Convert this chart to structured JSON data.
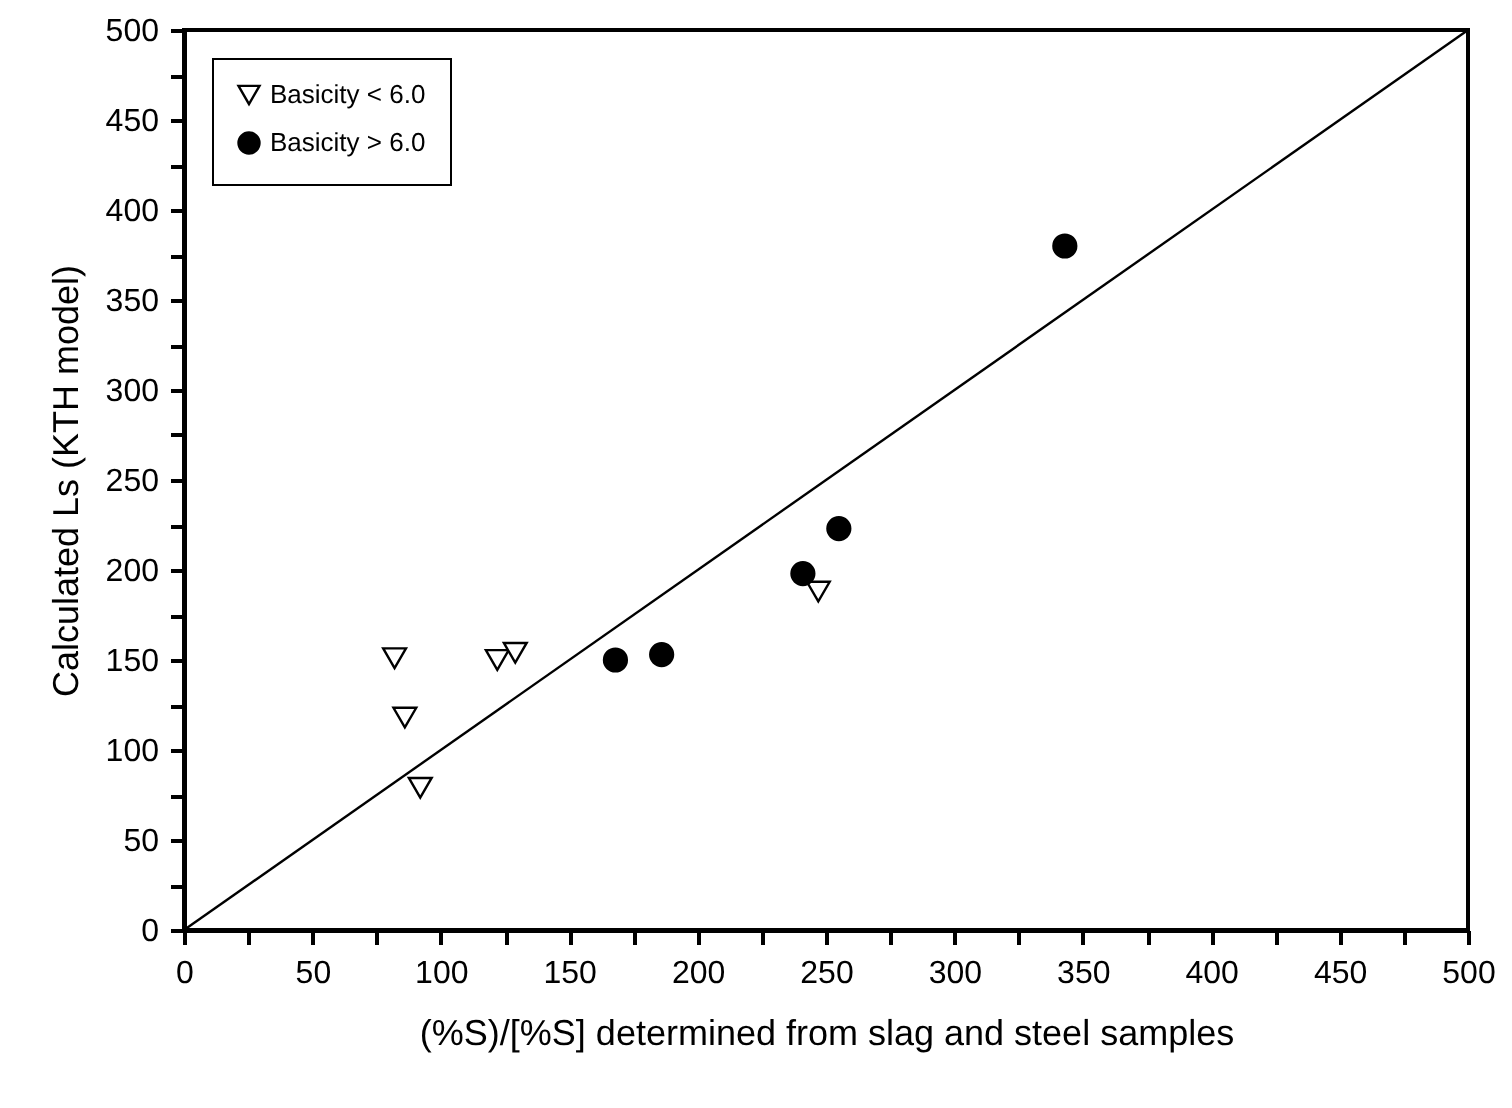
{
  "chart_data": {
    "type": "scatter",
    "xlabel": "(%S)/[%S] determined from slag and steel samples",
    "ylabel": "Calculated Ls (KTH model)",
    "xlim": [
      0,
      500
    ],
    "ylim": [
      0,
      500
    ],
    "xticks": [
      0,
      {
        "value": 25,
        "label": null
      },
      50,
      {
        "value": 75,
        "label": null
      },
      100,
      {
        "value": 125,
        "label": null
      },
      150,
      {
        "value": 175,
        "label": null
      },
      200,
      {
        "value": 225,
        "label": null
      },
      250,
      {
        "value": 275,
        "label": null
      },
      300,
      {
        "value": 325,
        "label": null
      },
      350,
      {
        "value": 375,
        "label": null
      },
      400,
      {
        "value": 425,
        "label": null
      },
      450,
      {
        "value": 475,
        "label": null
      },
      500
    ],
    "yticks": [
      0,
      {
        "value": 25,
        "label": null
      },
      50,
      {
        "value": 75,
        "label": null
      },
      100,
      {
        "value": 125,
        "label": null
      },
      150,
      {
        "value": 175,
        "label": null
      },
      200,
      {
        "value": 225,
        "label": null
      },
      250,
      {
        "value": 275,
        "label": null
      },
      300,
      {
        "value": 325,
        "label": null
      },
      350,
      {
        "value": 375,
        "label": null
      },
      400,
      {
        "value": 425,
        "label": null
      },
      450,
      {
        "value": 475,
        "label": null
      },
      500
    ],
    "grid": false,
    "legend": "top left",
    "series": [
      {
        "name": "Basicity < 6.0",
        "marker": "triangle",
        "color": "#000000",
        "x": [
          82,
          86,
          92,
          122,
          129,
          247
        ],
        "values": [
          151,
          118,
          79,
          150,
          154,
          188
        ]
      },
      {
        "name": "Basicity > 6.0",
        "marker": "circle",
        "color": "#000000",
        "x": [
          168,
          186,
          241,
          255,
          343
        ],
        "values": [
          150,
          153,
          198,
          223,
          380
        ]
      },
      {
        "type": "line",
        "color": "#000000",
        "line_style": "solid",
        "x": [
          0,
          500
        ],
        "values": [
          0,
          500
        ]
      }
    ]
  }
}
